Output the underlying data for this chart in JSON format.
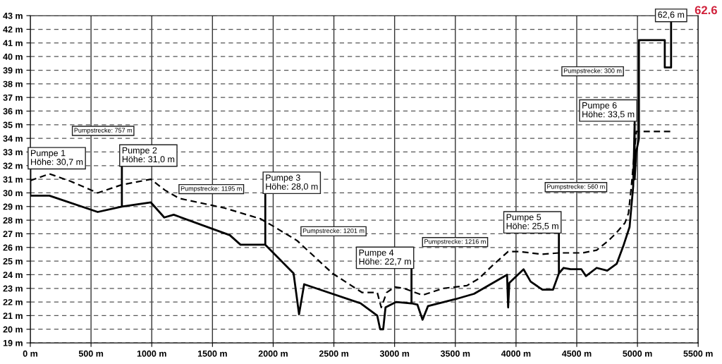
{
  "chart_data": {
    "type": "line",
    "series": [
      {
        "color": "#000000",
        "line_style": "solid",
        "x": [
          0,
          0,
          157,
          555,
          754,
          754,
          754,
          993,
          1103,
          1181,
          1643,
          1731,
          1935,
          1935,
          1935,
          2168,
          2213,
          2255,
          2721,
          2857,
          2881,
          2906,
          2925,
          3013,
          3139,
          3139,
          3139,
          3188,
          3230,
          3275,
          3498,
          3654,
          3926,
          3935,
          3945,
          4062,
          4120,
          4217,
          4304,
          4353,
          4353,
          4353,
          4392,
          4450,
          4538,
          4576,
          4664,
          4751,
          4829,
          4887,
          4935,
          4965,
          4977,
          4977,
          4990,
          5012,
          5012,
          5225,
          5225,
          5277,
          5277
        ],
        "values": [
          31.7,
          29.8,
          29.8,
          28.6,
          29.0,
          31.9,
          29.0,
          29.3,
          28.2,
          28.4,
          26.9,
          26.2,
          26.2,
          29.9,
          26.2,
          24.1,
          21.1,
          23.3,
          21.9,
          21.0,
          20.0,
          20.0,
          21.6,
          22.0,
          21.9,
          24.4,
          21.9,
          21.8,
          20.7,
          21.7,
          22.2,
          22.6,
          24.0,
          21.6,
          23.4,
          24.4,
          23.5,
          22.9,
          22.9,
          24.1,
          27.0,
          24.1,
          24.5,
          24.4,
          24.4,
          23.9,
          24.5,
          24.3,
          24.8,
          26.2,
          27.5,
          30.5,
          35.2,
          31.0,
          33.0,
          34.0,
          41.2,
          41.2,
          39.2,
          39.2,
          42.5
        ]
      },
      {
        "color": "#000000",
        "line_style": "dashed",
        "x": [
          0,
          157,
          332,
          555,
          754,
          993,
          1109,
          1226,
          1595,
          1896,
          1993,
          2197,
          2488,
          2731,
          2857,
          2890,
          2935,
          3003,
          3076,
          3230,
          3401,
          3595,
          3692,
          3809,
          3935,
          4022,
          4217,
          4353,
          4547,
          4664,
          4761,
          4819,
          4897,
          4926,
          4950,
          4975,
          4990,
          5277
        ],
        "values": [
          30.9,
          31.4,
          30.85,
          30.0,
          30.6,
          31.0,
          30.2,
          29.6,
          28.9,
          28.1,
          27.6,
          26.5,
          24.1,
          22.7,
          22.7,
          21.6,
          22.7,
          23.1,
          23.0,
          22.5,
          23.0,
          23.2,
          23.7,
          24.7,
          25.7,
          25.7,
          25.5,
          25.6,
          25.6,
          25.8,
          26.5,
          27.0,
          27.8,
          28.5,
          30.5,
          33.0,
          34.5,
          34.5
        ]
      }
    ],
    "xlim": [
      0,
      5500
    ],
    "xticks": [
      {
        "value": 0,
        "label": "0 m"
      },
      {
        "value": 500,
        "label": "500 m"
      },
      {
        "value": 1000,
        "label": "1000 m"
      },
      {
        "value": 1500,
        "label": "1500 m"
      },
      {
        "value": 2000,
        "label": "2000 m"
      },
      {
        "value": 2500,
        "label": "2500 m"
      },
      {
        "value": 3000,
        "label": "3000 m"
      },
      {
        "value": 3500,
        "label": "3500 m"
      },
      {
        "value": 4000,
        "label": "4000 m"
      },
      {
        "value": 4500,
        "label": "4500 m"
      },
      {
        "value": 5000,
        "label": "5000 m"
      },
      {
        "value": 5500,
        "label": "5500 m"
      }
    ],
    "ylim": [
      19,
      43
    ],
    "yticks": [
      {
        "value": 19,
        "label": "19 m"
      },
      {
        "value": 20,
        "label": "20 m"
      },
      {
        "value": 21,
        "label": "21 m"
      },
      {
        "value": 22,
        "label": "22 m"
      },
      {
        "value": 23,
        "label": "23 m"
      },
      {
        "value": 24,
        "label": "24 m"
      },
      {
        "value": 25,
        "label": "25 m"
      },
      {
        "value": 26,
        "label": "26 m"
      },
      {
        "value": 27,
        "label": "27 m"
      },
      {
        "value": 28,
        "label": "28 m"
      },
      {
        "value": 29,
        "label": "29 m"
      },
      {
        "value": 30,
        "label": "30 m"
      },
      {
        "value": 31,
        "label": "31 m"
      },
      {
        "value": 32,
        "label": "32 m"
      },
      {
        "value": 33,
        "label": "33 m"
      },
      {
        "value": 34,
        "label": "34 m"
      },
      {
        "value": 35,
        "label": "35 m"
      },
      {
        "value": 36,
        "label": "36 m"
      },
      {
        "value": 37,
        "label": "37 m"
      },
      {
        "value": 38,
        "label": "38 m"
      },
      {
        "value": 39,
        "label": "39 m"
      },
      {
        "value": 40,
        "label": "40 m"
      },
      {
        "value": 41,
        "label": "41 m"
      },
      {
        "value": 42,
        "label": "42 m"
      },
      {
        "value": 43,
        "label": "43 m"
      }
    ],
    "grid": true,
    "marker": "none",
    "annotations": [
      {
        "text": "Pumpe 1\nHöhe: 30,7 m",
        "x": 0,
        "y": 31.7
      },
      {
        "text": "Pumpe 2\nHöhe: 31,0 m",
        "x": 754,
        "y": 31.9
      },
      {
        "text": "Pumpe 3\nHöhe: 28,0 m",
        "x": 1935,
        "y": 29.9
      },
      {
        "text": "Pumpe 4\nHöhe: 22,7 m",
        "x": 3139,
        "y": 24.4
      },
      {
        "text": "Pumpe 5\nHöhe: 25,5 m",
        "x": 4353,
        "y": 27.0
      },
      {
        "text": "Pumpe 6\nHöhe: 33,5 m",
        "x": 4977,
        "y": 35.2
      },
      {
        "text": "62,6 m",
        "x": 5277,
        "y": 42.5
      },
      "Pumpstrecke: 757 m",
      "Pumpstrecke: 1195 m",
      "Pumpstrecke: 1201 m",
      "Pumpstrecke: 1216 m",
      "Pumpstrecke: 560 m",
      "Pumpstrecke: 300 m",
      "62.6"
    ]
  }
}
